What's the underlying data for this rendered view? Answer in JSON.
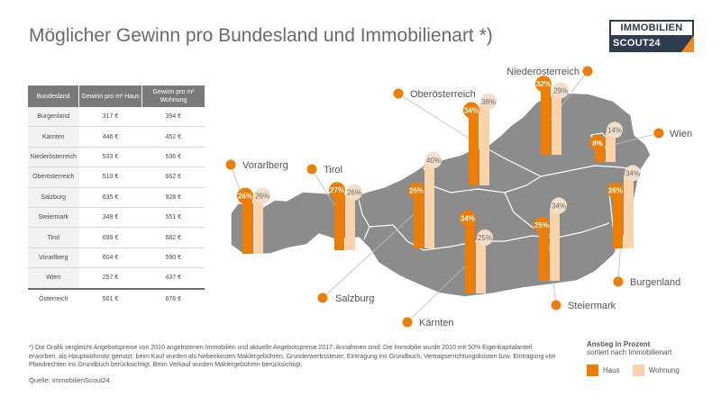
{
  "title": "Möglicher Gewinn pro Bundesland und Immobilienart *)",
  "logo": {
    "line1": "IMMOBILIEN",
    "line2": "SCOUT24"
  },
  "table": {
    "headers": [
      "Bundesland",
      "Gewinn pro m² Haus",
      "Gewinn pro m² Wohnung"
    ],
    "rows": [
      [
        "Burgenland",
        "317 €",
        "394 €"
      ],
      [
        "Kärnten",
        "446 €",
        "452 €"
      ],
      [
        "Niederösterreich",
        "533 €",
        "536 €"
      ],
      [
        "Oberösterreich",
        "510 €",
        "662 €"
      ],
      [
        "Salzburg",
        "635 €",
        "928 €"
      ],
      [
        "Steiermark",
        "348 €",
        "551 €"
      ],
      [
        "Tirol",
        "699 €",
        "682 €"
      ],
      [
        "Vorarlberg",
        "604 €",
        "590 €"
      ],
      [
        "Wien",
        "257 €",
        "437 €"
      ]
    ],
    "total": [
      "Österreich",
      "501 €",
      "676 €"
    ]
  },
  "chart_data": {
    "type": "bar",
    "categories": [
      "Vorarlberg",
      "Tirol",
      "Salzburg",
      "Oberösterreich",
      "Kärnten",
      "Niederösterreich",
      "Wien",
      "Steiermark",
      "Burgenland"
    ],
    "series": [
      {
        "name": "Haus",
        "values": [
          26,
          27,
          26,
          34,
          34,
          32,
          8,
          25,
          26
        ]
      },
      {
        "name": "Wohnung",
        "values": [
          26,
          26,
          40,
          38,
          25,
          29,
          14,
          34,
          34
        ]
      }
    ],
    "value_labels": {
      "Haus": [
        "26%",
        "27%",
        "26%",
        "34%",
        "34%",
        "32%",
        "8%",
        "25%",
        "26%"
      ],
      "Wohnung": [
        "26%",
        "26%",
        "40%",
        "38%",
        "25%",
        "29%",
        "14%",
        "34%",
        "34%"
      ]
    },
    "colors": {
      "Haus": "#ee7d00",
      "Wohnung": "#fad3aa",
      "map": "#8c8c8c"
    },
    "legend_position": "bottom-right"
  },
  "legend": {
    "title": "Anstieg in Prozent",
    "subtitle": "sortiert nach Immobilienart",
    "haus": "Haus",
    "wohnung": "Wohnung"
  },
  "footnote": "*) Die Grafik vergleicht Angebotspreise von 2010 angebotenen Immobilien und aktuelle Angebotspreise 2017. Annahmen sind: Die Immobilie wurde 2010 mit 50% Eigenkapitalanteil erworben, als Hauptwohnsitz genutzt, beim Kauf wurden als Nebenkosten Maklergebühren, Grunderwerbssteuer, Eintragung ins Grundbuch, Vertragserrichtungskosten bzw. Eintragung von Pfandrechten ins Grundbuch berücksichtigt. Beim Verkauf wurden Maklergebühren berücksichtigt.",
  "source": "Quelle: ImmobilienScout24"
}
